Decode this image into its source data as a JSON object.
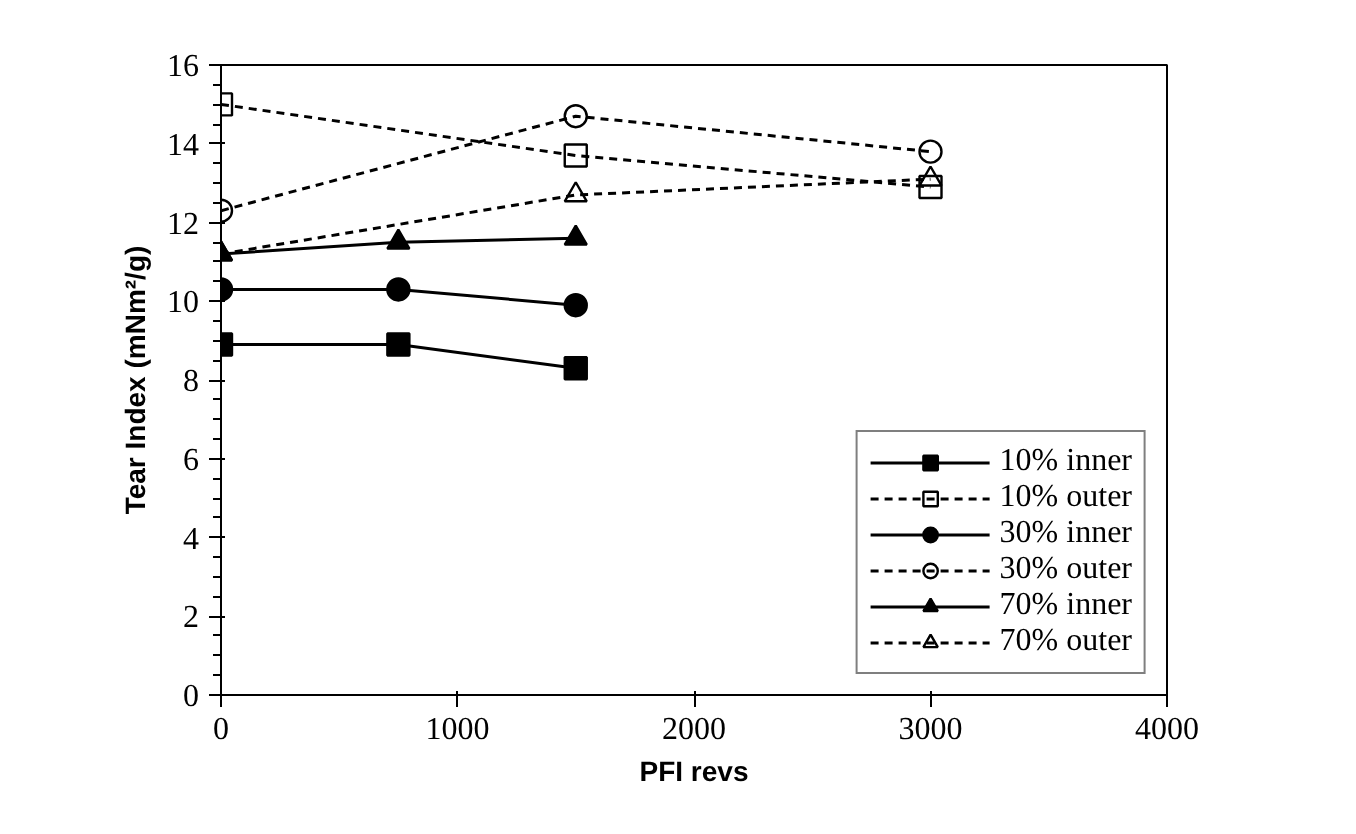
{
  "chart_data": {
    "type": "line",
    "xlabel": "PFI revs",
    "ylabel": "Tear Index (mNm²/g)",
    "xlim": [
      0,
      4000
    ],
    "xticks": [
      0,
      1000,
      2000,
      3000,
      4000
    ],
    "ylim": [
      0,
      16
    ],
    "yticks": [
      0,
      2,
      4,
      6,
      8,
      10,
      12,
      14,
      16
    ],
    "grid": false,
    "legend": "bottom right",
    "series": [
      {
        "name": "10% inner",
        "color": "#000000",
        "marker": "square",
        "line_style": "solid",
        "x": [
          0,
          750,
          1500
        ],
        "values": [
          8.9,
          8.9,
          8.3
        ]
      },
      {
        "name": "10% outer",
        "color": "#000000",
        "marker": "square",
        "line_style": "dashed",
        "x": [
          0,
          1500,
          3000
        ],
        "values": [
          15.0,
          13.7,
          12.9
        ]
      },
      {
        "name": "30% inner",
        "color": "#000000",
        "marker": "circle",
        "line_style": "solid",
        "x": [
          0,
          750,
          1500
        ],
        "values": [
          10.3,
          10.3,
          9.9
        ]
      },
      {
        "name": "30% outer",
        "color": "#000000",
        "marker": "circle",
        "line_style": "dashed",
        "x": [
          0,
          1500,
          3000
        ],
        "values": [
          12.3,
          14.7,
          13.8
        ]
      },
      {
        "name": "70% inner",
        "color": "#000000",
        "marker": "triangle",
        "line_style": "solid",
        "x": [
          0,
          750,
          1500
        ],
        "values": [
          11.2,
          11.5,
          11.6
        ]
      },
      {
        "name": "70% outer",
        "color": "#000000",
        "marker": "triangle",
        "line_style": "dashed",
        "x": [
          0,
          1500,
          3000
        ],
        "values": [
          11.2,
          12.7,
          13.1
        ]
      }
    ]
  }
}
